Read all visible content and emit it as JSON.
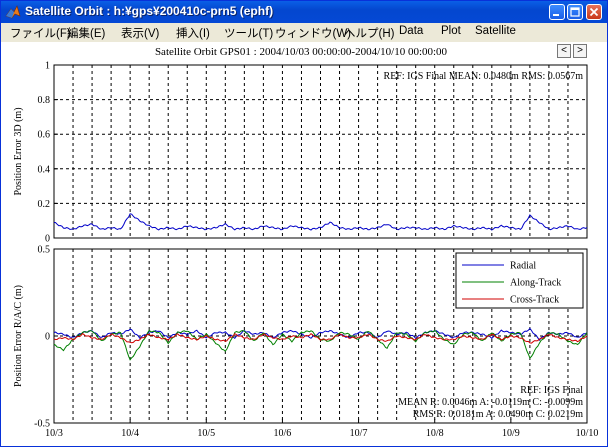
{
  "window": {
    "title": "Satellite Orbit : h:¥gps¥200410c-prn5 (ephf)",
    "icon": "matlab-logo-icon"
  },
  "menubar": {
    "items": [
      "ファイル(F)",
      "編集(E)",
      "表示(V)",
      "挿入(I)",
      "ツール(T)",
      "ウィンドウ(W)",
      "ヘルプ(H)",
      "Data",
      "Plot",
      "Satellite"
    ]
  },
  "figure": {
    "title": "Satellite Orbit GPS01 : 2004/10/03 00:00:00-2004/10/10 00:00:00",
    "prev_label": "<",
    "next_label": ">"
  },
  "colors": {
    "radial": "#0000c8",
    "along": "#008000",
    "cross": "#d00000",
    "grid": "#000000"
  },
  "chart_data": [
    {
      "type": "line",
      "ylabel": "Position Error 3D (m)",
      "xlabel": "",
      "ylim": [
        0,
        1
      ],
      "yticks": [
        "0",
        "0.2",
        "0.4",
        "0.6",
        "0.8",
        "1"
      ],
      "ytick_values": [
        0,
        0.2,
        0.4,
        0.6,
        0.8,
        1
      ],
      "xlim": [
        "2004-10-03",
        "2004-10-10"
      ],
      "grid": true,
      "annotation": "REF: IGS Final  MEAN:  0.0480m RMS:  0.0567m",
      "series": [
        {
          "color": "#0000c8",
          "values_per_day": [
            0.09,
            0.06,
            0.05,
            0.07,
            0.08,
            0.05,
            0.06,
            0.05,
            0.14,
            0.1,
            0.07,
            0.05,
            0.06,
            0.05,
            0.07,
            0.06,
            0.05,
            0.06,
            0.08,
            0.05,
            0.06,
            0.05,
            0.07,
            0.06,
            0.05,
            0.07,
            0.06,
            0.05,
            0.06,
            0.09,
            0.06,
            0.05,
            0.06,
            0.05,
            0.06,
            0.08,
            0.05,
            0.06,
            0.06,
            0.05,
            0.06,
            0.05,
            0.07,
            0.06,
            0.05,
            0.06,
            0.05,
            0.07,
            0.06,
            0.05,
            0.13,
            0.09,
            0.05,
            0.06,
            0.07,
            0.05,
            0.06
          ]
        }
      ]
    },
    {
      "type": "line",
      "ylabel": "Position Error R/A/C (m)",
      "xlabel": "",
      "ylim": [
        -0.5,
        0.5
      ],
      "yticks": [
        "-0.5",
        "0",
        "0.5"
      ],
      "ytick_values": [
        -0.5,
        0,
        0.5
      ],
      "xticks": [
        "10/3",
        "10/4",
        "10/5",
        "10/6",
        "10/7",
        "10/8",
        "10/9",
        "10/10"
      ],
      "grid": true,
      "legend": {
        "position": "top-right",
        "entries": [
          "Radial",
          "Along-Track",
          "Cross-Track"
        ]
      },
      "annotation_lines": [
        "REF: IGS Final",
        "MEAN R: 0.0046m A: -0.0119m C: -0.0099m",
        "RMS R: 0.0181m A: 0.0490m C: 0.0219m"
      ],
      "series": [
        {
          "name": "Radial",
          "color": "#0000c8",
          "values": [
            0.02,
            0.01,
            -0.01,
            0.02,
            0.03,
            -0.01,
            0.02,
            0.01,
            0.04,
            -0.01,
            0.02,
            0.03,
            -0.01,
            0.02,
            0.01,
            0.03,
            -0.01,
            0.02,
            0.02,
            -0.01,
            0.03,
            0.01,
            0.02,
            -0.01,
            0.02,
            0.03,
            0.01,
            -0.01,
            0.02,
            0.03,
            0.01,
            -0.01,
            0.02,
            0.02,
            -0.01,
            0.03,
            0.01,
            0.02,
            -0.01,
            0.02,
            0.03,
            0.01,
            -0.01,
            0.02,
            0.02,
            0.01,
            -0.01,
            0.03,
            0.02,
            0.01,
            0.04,
            -0.02,
            0.02,
            0.01,
            0.02,
            -0.01,
            0.02
          ]
        },
        {
          "name": "Along-Track",
          "color": "#008000",
          "values": [
            -0.05,
            -0.08,
            -0.02,
            0.02,
            0.03,
            -0.03,
            0.01,
            0.02,
            -0.14,
            -0.06,
            0.03,
            0.02,
            -0.04,
            0.02,
            0.03,
            -0.02,
            0.01,
            -0.04,
            -0.09,
            0.02,
            0.03,
            -0.03,
            0.02,
            -0.05,
            0.01,
            -0.03,
            0.02,
            0.03,
            -0.02,
            -0.03,
            0.02,
            0.01,
            -0.02,
            0.03,
            -0.02,
            -0.07,
            0.02,
            0.01,
            -0.03,
            0.02,
            0.03,
            -0.02,
            -0.05,
            0.01,
            0.02,
            -0.03,
            0.02,
            -0.03,
            0.01,
            0.02,
            -0.13,
            -0.04,
            0.02,
            0.01,
            -0.03,
            -0.05,
            0.02
          ]
        },
        {
          "name": "Cross-Track",
          "color": "#d00000",
          "values": [
            -0.02,
            -0.01,
            -0.02,
            0.01,
            -0.01,
            -0.02,
            0.01,
            -0.01,
            -0.04,
            -0.02,
            0.01,
            -0.01,
            -0.02,
            0.01,
            -0.01,
            -0.02,
            0.0,
            -0.02,
            -0.03,
            0.01,
            -0.01,
            -0.02,
            0.01,
            -0.01,
            -0.02,
            0.0,
            -0.01,
            0.01,
            -0.02,
            -0.02,
            0.01,
            -0.01,
            -0.01,
            0.01,
            -0.02,
            -0.03,
            0.0,
            -0.01,
            -0.02,
            0.01,
            -0.01,
            -0.02,
            -0.02,
            0.0,
            -0.01,
            -0.02,
            0.01,
            -0.02,
            0.0,
            -0.01,
            -0.04,
            -0.02,
            0.01,
            -0.01,
            -0.02,
            -0.03,
            0.0
          ]
        }
      ]
    }
  ]
}
